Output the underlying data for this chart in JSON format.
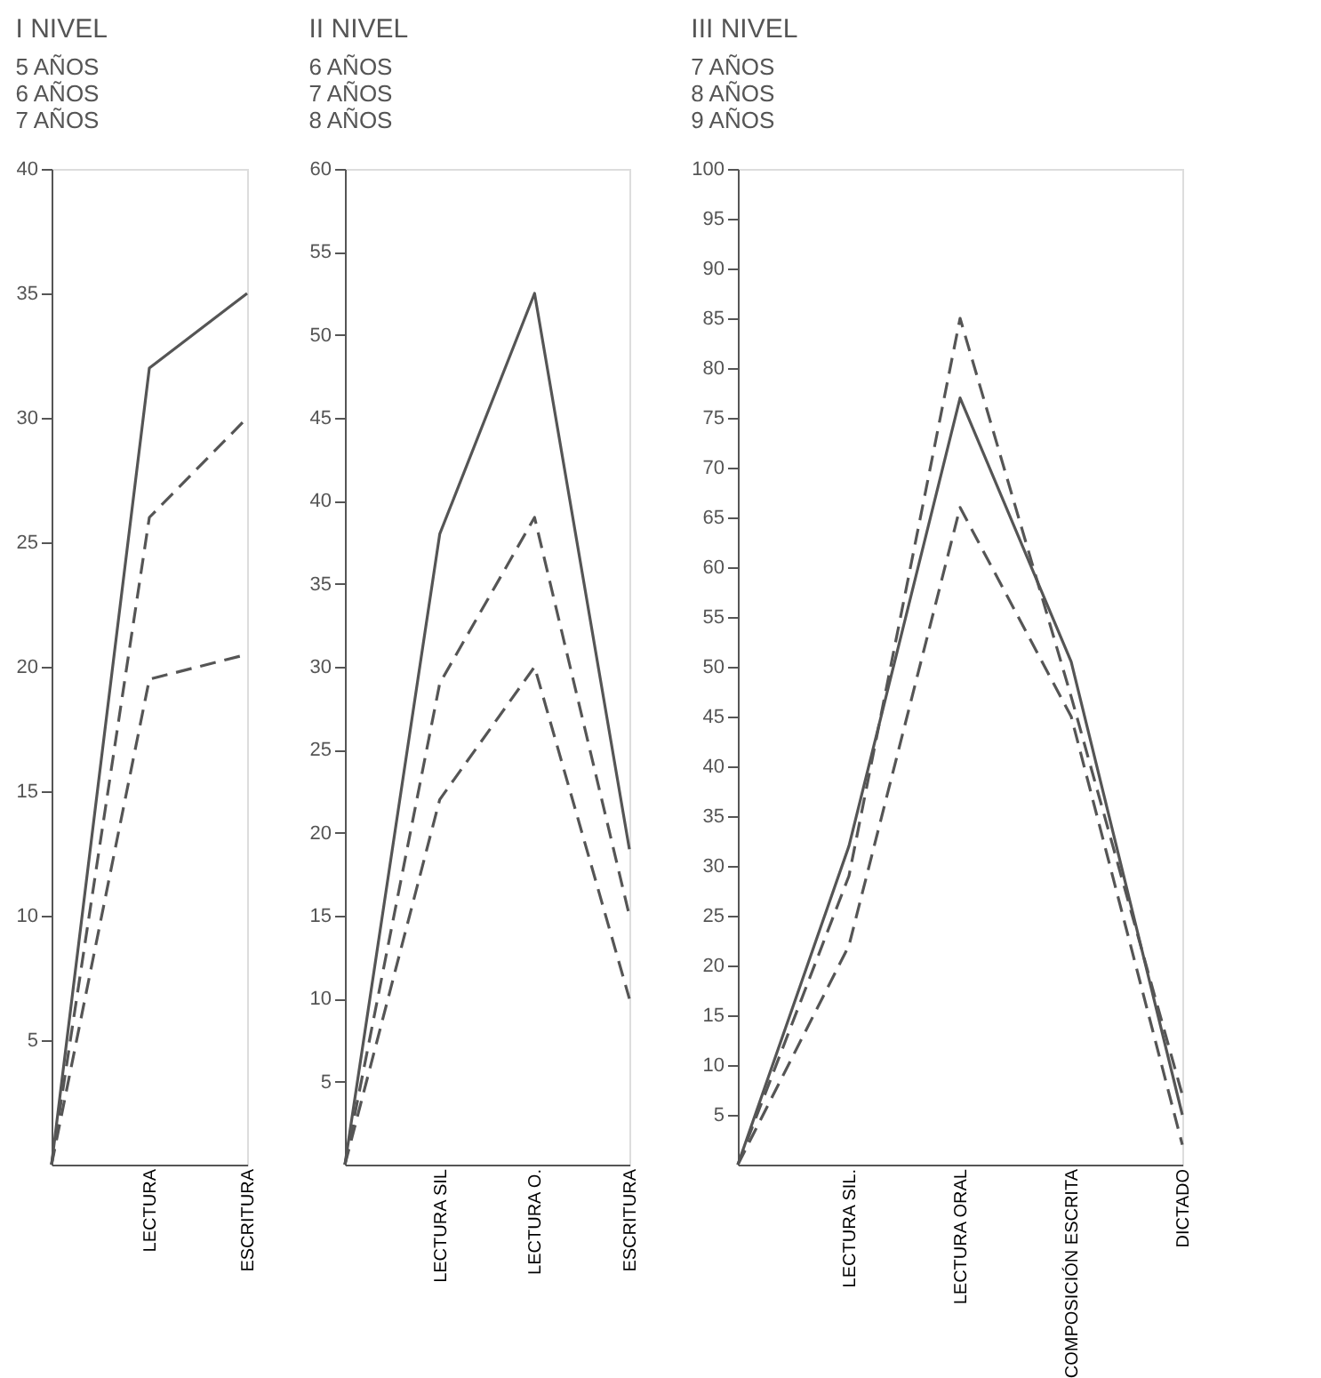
{
  "chart_data": [
    {
      "type": "line",
      "title": "I NIVEL",
      "annotations": [
        "5 AÑOS",
        "6 AÑOS",
        "7 AÑOS"
      ],
      "categories": [
        null,
        "LECTURA",
        "ESCRITURA"
      ],
      "ylim": [
        0,
        40
      ],
      "yticks": [
        5,
        10,
        15,
        20,
        25,
        30,
        35,
        40
      ],
      "grid": false,
      "marker": "none",
      "series": [
        {
          "color": "#555555",
          "line_style": "solid",
          "values": [
            0,
            32,
            35
          ]
        },
        {
          "color": "#555555",
          "line_style": "dashed",
          "values": [
            0,
            26,
            30
          ]
        },
        {
          "color": "#555555",
          "line_style": "dashed",
          "values": [
            0,
            19.5,
            20.5
          ]
        }
      ]
    },
    {
      "type": "line",
      "title": "II NIVEL",
      "annotations": [
        "6 AÑOS",
        "7 AÑOS",
        "8 AÑOS"
      ],
      "categories": [
        null,
        "LECTURA SIL",
        "LECTURA O.",
        "ESCRITURA"
      ],
      "ylim": [
        0,
        60
      ],
      "yticks": [
        5,
        10,
        15,
        20,
        25,
        30,
        35,
        40,
        45,
        50,
        55,
        60
      ],
      "grid": false,
      "marker": "none",
      "series": [
        {
          "color": "#555555",
          "line_style": "solid",
          "values": [
            0,
            38,
            52.5,
            19
          ]
        },
        {
          "color": "#555555",
          "line_style": "dashed",
          "values": [
            0,
            29,
            39,
            15
          ]
        },
        {
          "color": "#555555",
          "line_style": "dashed",
          "values": [
            0,
            22,
            30,
            10
          ]
        }
      ]
    },
    {
      "type": "line",
      "title": "III NIVEL",
      "annotations": [
        "7 AÑOS",
        "8 AÑOS",
        "9 AÑOS"
      ],
      "categories": [
        null,
        "LECTURA SIL.",
        "LECTURA ORAL",
        "COMPOSICIÓN ESCRITA",
        "DICTADO"
      ],
      "ylim": [
        0,
        100
      ],
      "yticks": [
        5,
        10,
        15,
        20,
        25,
        30,
        35,
        40,
        45,
        50,
        55,
        60,
        65,
        70,
        75,
        80,
        85,
        90,
        95,
        100
      ],
      "grid": false,
      "marker": "none",
      "series": [
        {
          "color": "#555555",
          "line_style": "solid",
          "values": [
            0,
            32,
            77,
            50.5,
            5
          ]
        },
        {
          "color": "#555555",
          "line_style": "dashed",
          "values": [
            0,
            29,
            85,
            47,
            7
          ]
        },
        {
          "color": "#555555",
          "line_style": "dashed",
          "values": [
            0,
            22,
            66,
            45,
            2
          ]
        }
      ]
    }
  ]
}
